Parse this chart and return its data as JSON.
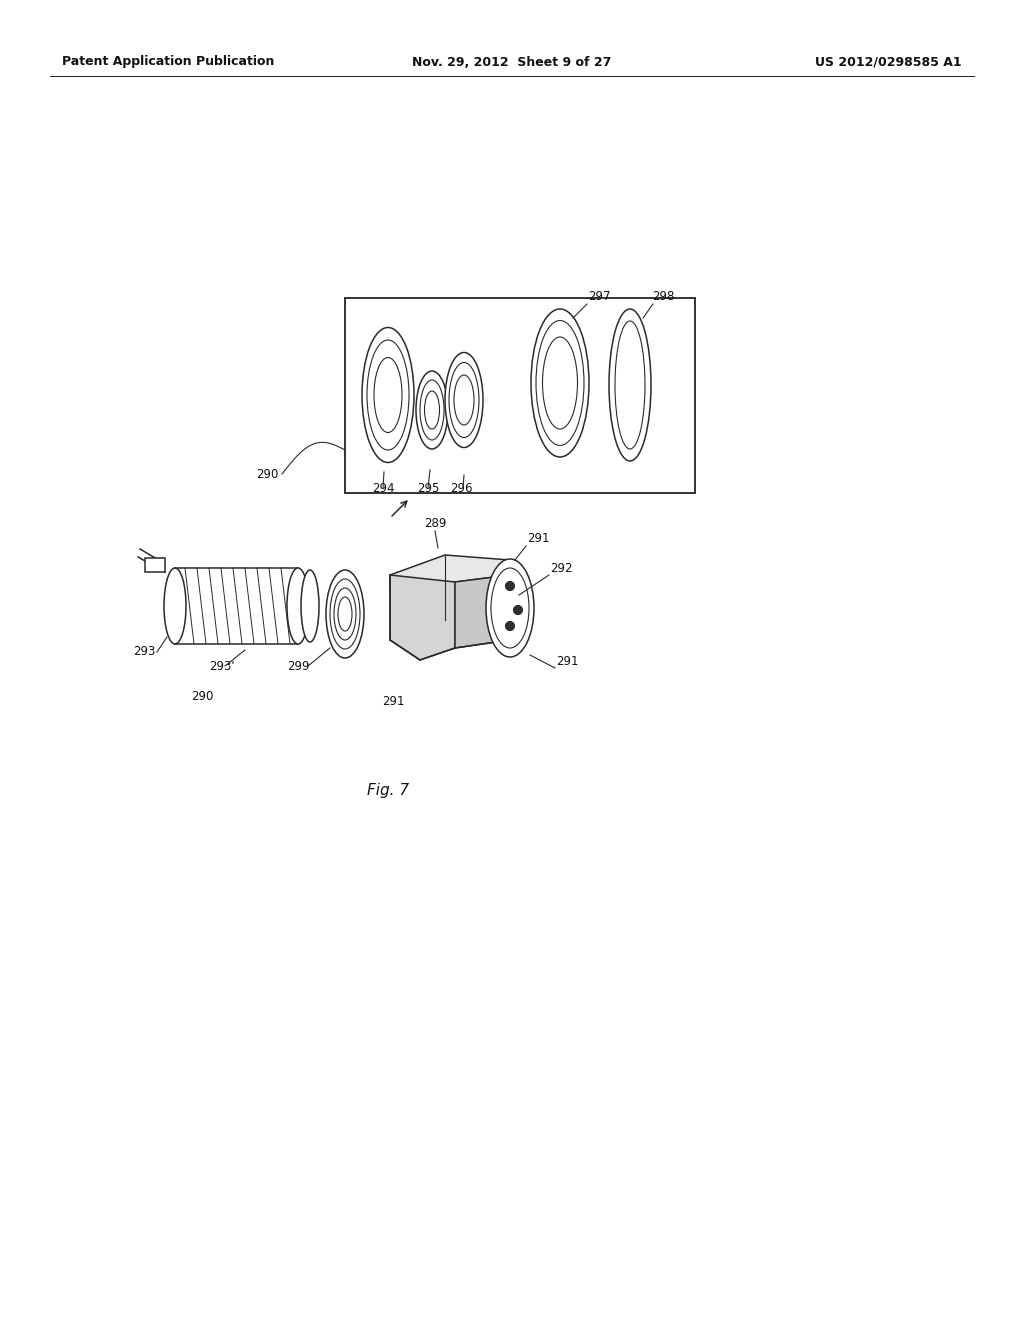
{
  "bg_color": "#ffffff",
  "header_left": "Patent Application Publication",
  "header_center": "Nov. 29, 2012  Sheet 9 of 27",
  "header_right": "US 2012/0298585 A1",
  "fig_label": "Fig. 7"
}
